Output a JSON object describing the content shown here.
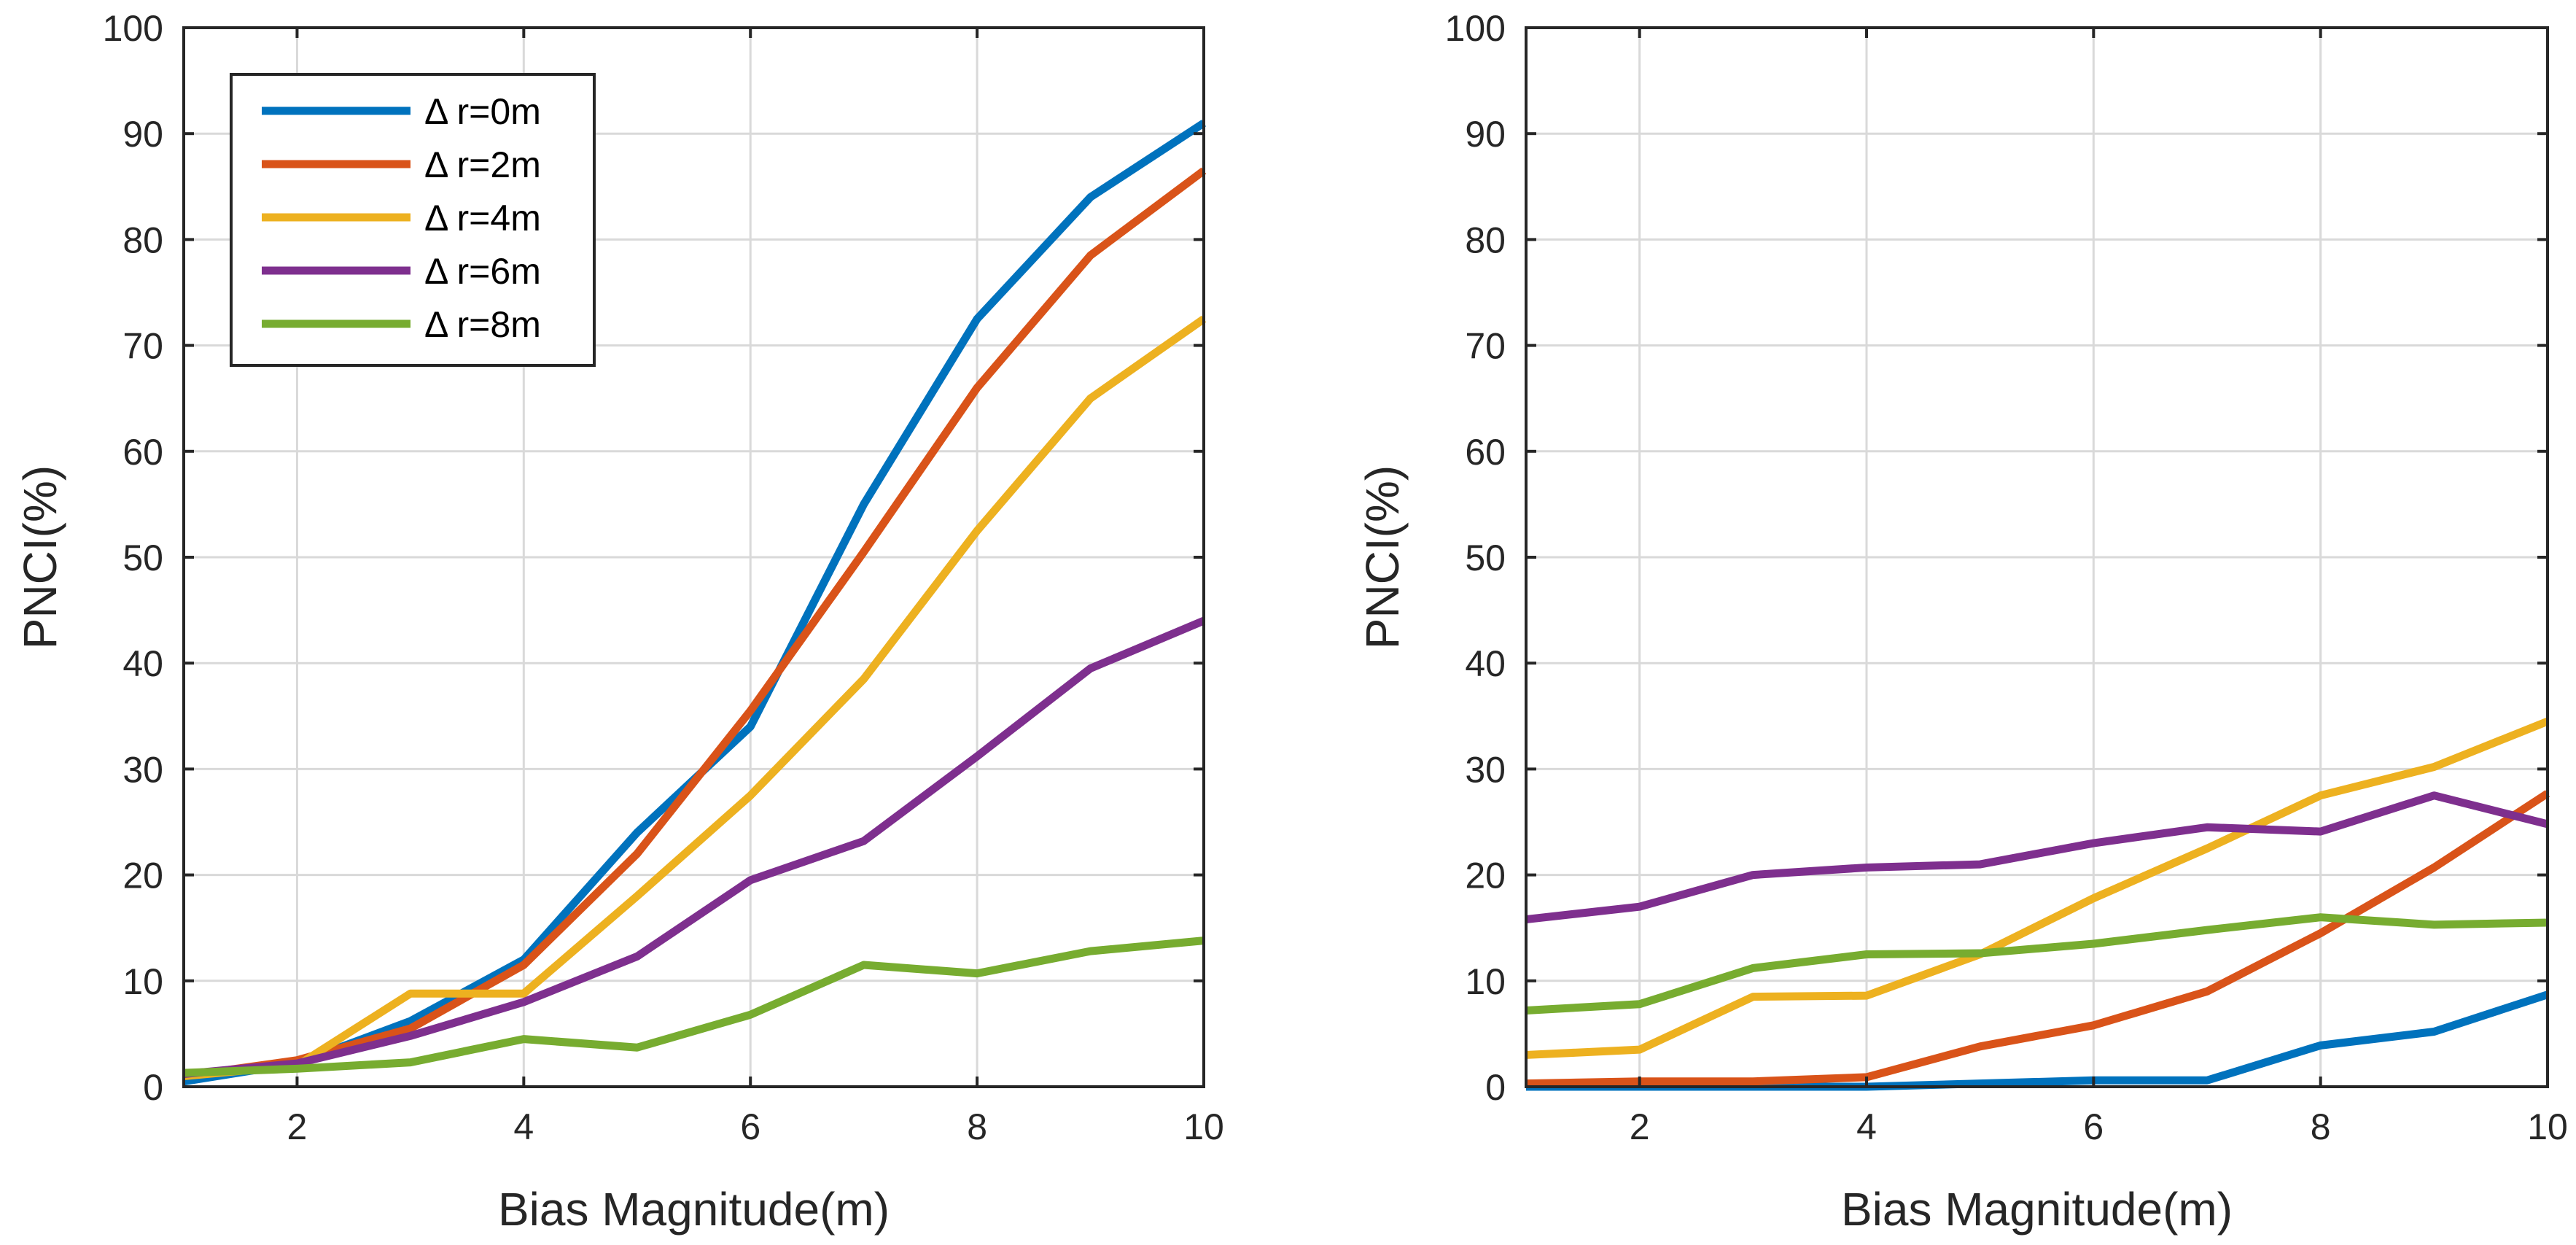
{
  "chart_data": [
    {
      "type": "line",
      "panel": "left",
      "title": "",
      "xlabel": "Bias Magnitude(m)",
      "ylabel": "PNCI(%)",
      "xlim": [
        1,
        10
      ],
      "ylim": [
        0,
        100
      ],
      "xticks": [
        2,
        4,
        6,
        8,
        10
      ],
      "yticks": [
        0,
        10,
        20,
        30,
        40,
        50,
        60,
        70,
        80,
        90,
        100
      ],
      "grid": true,
      "legend_position": "top-left",
      "x": [
        1,
        2,
        3,
        4,
        5,
        6,
        7,
        8,
        9,
        10
      ],
      "series": [
        {
          "name": "Δ r=0m",
          "color": "#0072BD",
          "values": [
            0.5,
            2.2,
            6.2,
            12.0,
            24.0,
            34.0,
            55.0,
            72.5,
            84.0,
            91.0
          ]
        },
        {
          "name": "Δ r=2m",
          "color": "#D95319",
          "values": [
            1.0,
            2.5,
            5.5,
            11.5,
            22.0,
            35.5,
            50.5,
            66.0,
            78.5,
            86.5
          ]
        },
        {
          "name": "Δ r=4m",
          "color": "#EDB120",
          "values": [
            1.0,
            2.0,
            8.8,
            8.8,
            18.0,
            27.5,
            38.5,
            52.5,
            65.0,
            72.5
          ]
        },
        {
          "name": "Δ r=6m",
          "color": "#7E2F8E",
          "values": [
            1.2,
            2.2,
            4.8,
            8.0,
            12.3,
            19.5,
            23.2,
            31.2,
            39.5,
            44.0
          ]
        },
        {
          "name": "Δ r=8m",
          "color": "#77AC30",
          "values": [
            1.3,
            1.7,
            2.3,
            4.5,
            3.7,
            6.8,
            11.5,
            10.7,
            12.8,
            13.8
          ]
        }
      ]
    },
    {
      "type": "line",
      "panel": "right",
      "title": "",
      "xlabel": "Bias Magnitude(m)",
      "ylabel": "PNCI(%)",
      "xlim": [
        1,
        10
      ],
      "ylim": [
        0,
        100
      ],
      "xticks": [
        2,
        4,
        6,
        8,
        10
      ],
      "yticks": [
        0,
        10,
        20,
        30,
        40,
        50,
        60,
        70,
        80,
        90,
        100
      ],
      "grid": true,
      "x": [
        1,
        2,
        3,
        4,
        5,
        6,
        7,
        8,
        9,
        10
      ],
      "series": [
        {
          "name": "Δ r=0m",
          "color": "#0072BD",
          "values": [
            0.0,
            0.0,
            0.0,
            0.0,
            0.3,
            0.6,
            0.6,
            3.9,
            5.2,
            8.7
          ]
        },
        {
          "name": "Δ r=2m",
          "color": "#D95319",
          "values": [
            0.3,
            0.5,
            0.5,
            0.9,
            3.8,
            5.8,
            9.0,
            14.5,
            20.7,
            27.7
          ]
        },
        {
          "name": "Δ r=4m",
          "color": "#EDB120",
          "values": [
            3.0,
            3.5,
            8.5,
            8.6,
            12.5,
            17.8,
            22.5,
            27.5,
            30.2,
            34.5
          ]
        },
        {
          "name": "Δ r=6m",
          "color": "#7E2F8E",
          "values": [
            15.8,
            17.0,
            20.0,
            20.7,
            21.0,
            23.0,
            24.5,
            24.1,
            27.5,
            24.8
          ]
        },
        {
          "name": "Δ r=8m",
          "color": "#77AC30",
          "values": [
            7.2,
            7.8,
            11.2,
            12.5,
            12.6,
            13.5,
            14.8,
            16.0,
            15.3,
            15.5
          ]
        }
      ]
    }
  ]
}
